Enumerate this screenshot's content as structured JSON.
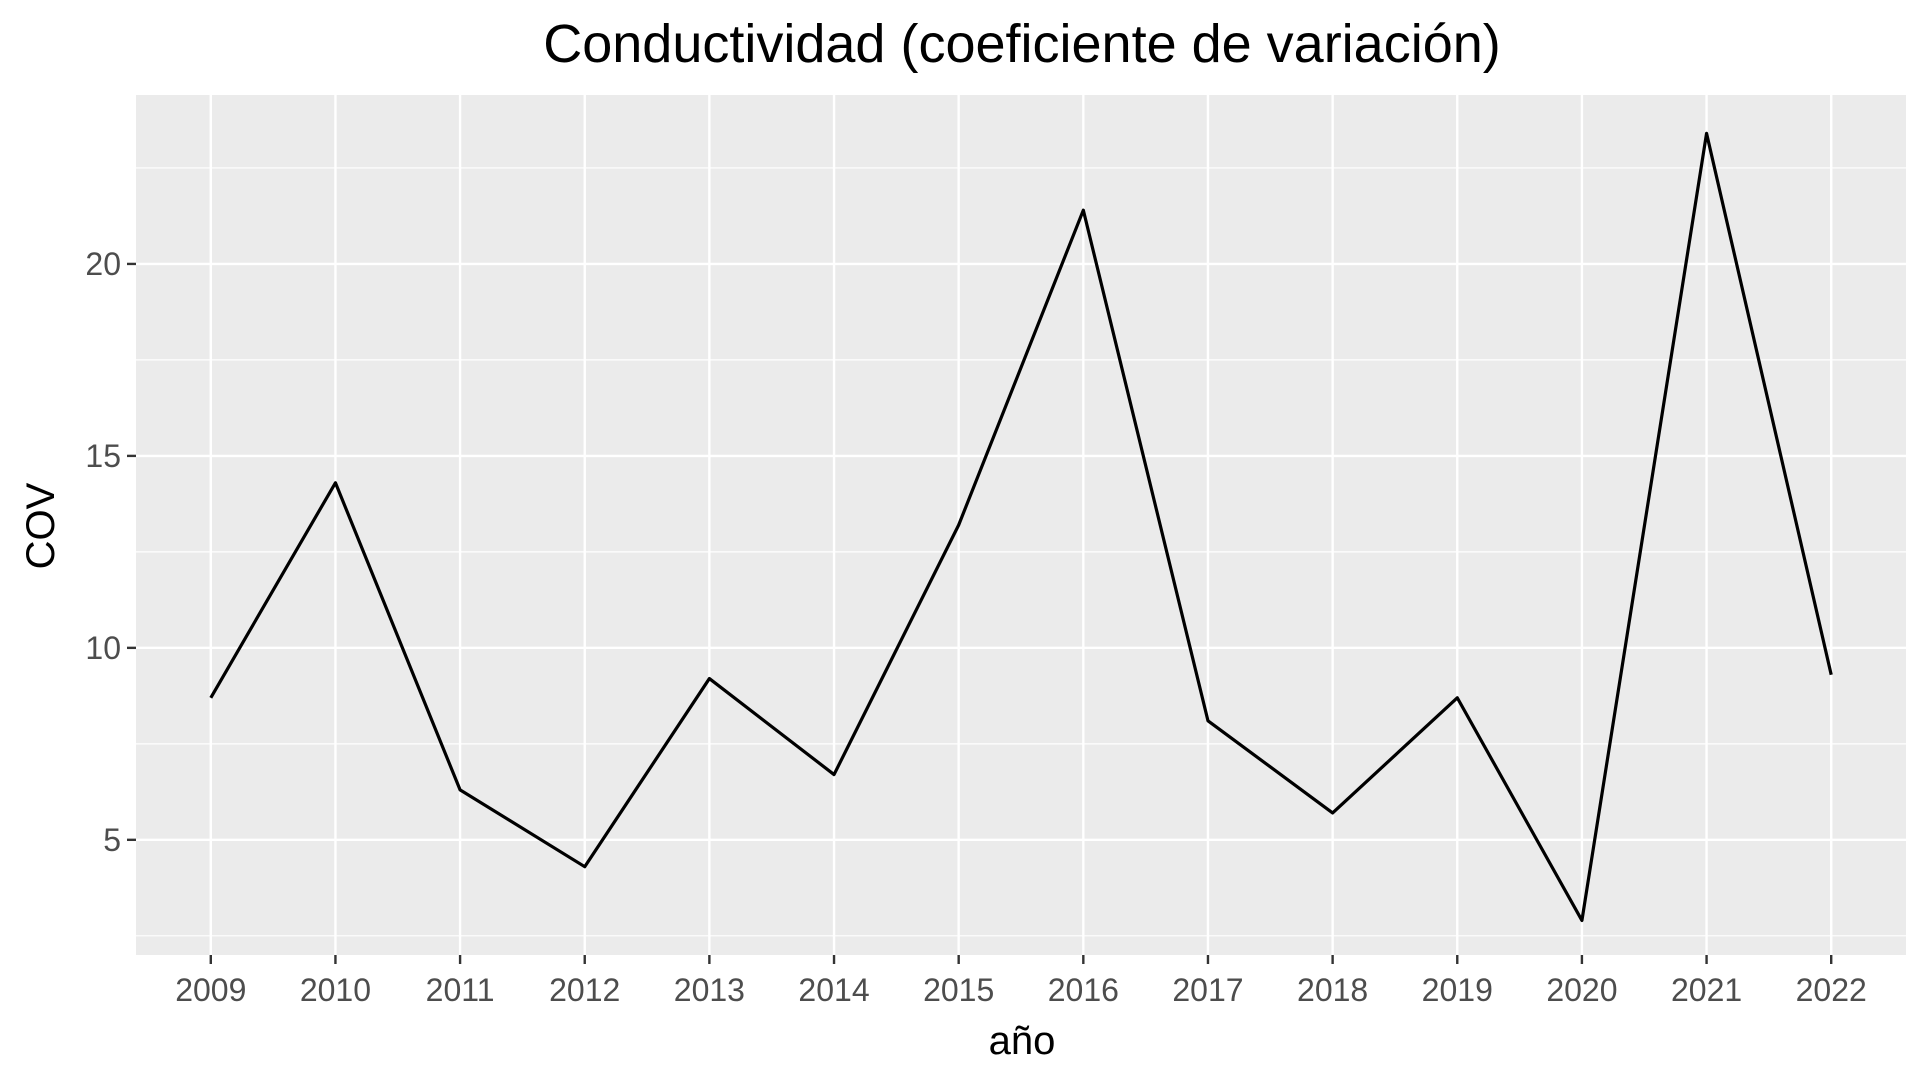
{
  "chart_data": {
    "type": "line",
    "title": "Conductividad (coeficiente de variación)",
    "xlabel": "año",
    "ylabel": "COV",
    "x": [
      2009,
      2010,
      2011,
      2012,
      2013,
      2014,
      2015,
      2016,
      2017,
      2018,
      2019,
      2020,
      2021,
      2022
    ],
    "series": [
      {
        "values": [
          8.7,
          14.3,
          6.3,
          4.3,
          9.2,
          6.7,
          13.2,
          21.4,
          8.1,
          5.7,
          8.7,
          2.9,
          23.4,
          9.3
        ]
      }
    ],
    "ylim": [
      2.0,
      24.4
    ],
    "y_ticks": [
      5,
      10,
      15,
      20
    ],
    "x_tick_labels": [
      "2009",
      "2010",
      "2011",
      "2012",
      "2013",
      "2014",
      "2015",
      "2016",
      "2017",
      "2018",
      "2019",
      "2020",
      "2021",
      "2022"
    ],
    "y_tick_labels": [
      "5",
      "10",
      "15",
      "20"
    ],
    "grid": true,
    "legend": "none",
    "colors": {
      "panel": "#ebebeb",
      "grid": "#ffffff",
      "line": "#000000",
      "tick_text": "#4d4d4d"
    }
  }
}
